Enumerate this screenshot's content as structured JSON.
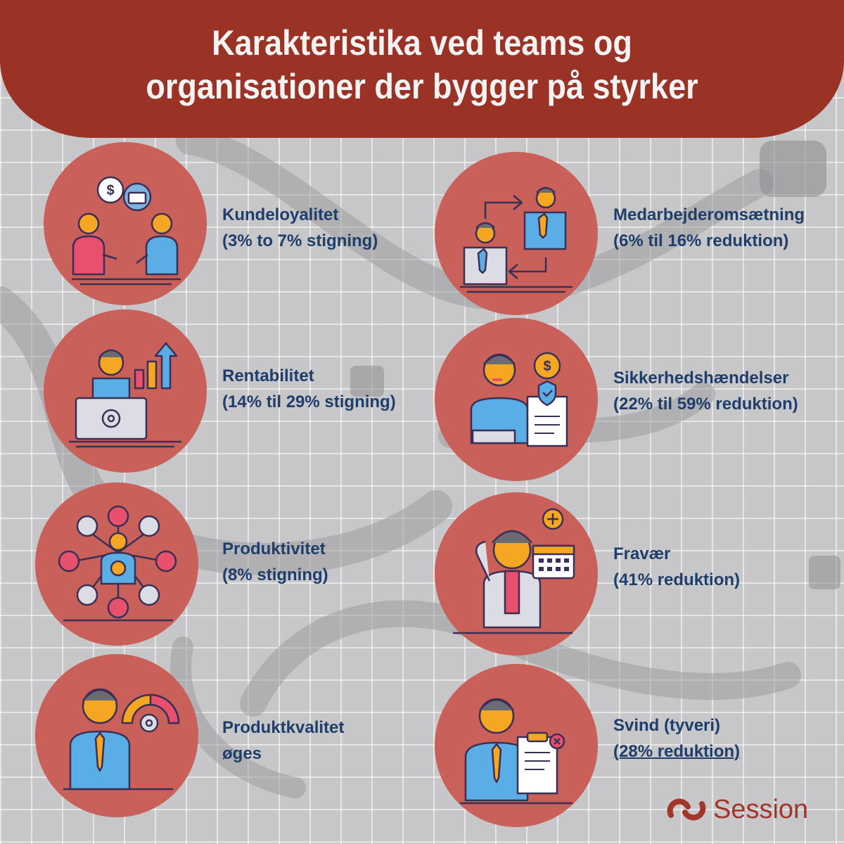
{
  "title": {
    "line1": "Karakteristika ved teams og",
    "line2": "organisationer der bygger på styrker"
  },
  "items": [
    {
      "icon": "handshake-meeting-icon",
      "line1": "Kundeloyalitet",
      "line2": "(3% to 7% stigning)"
    },
    {
      "icon": "employee-turnover-icon",
      "line1": "Medarbejderomsætning",
      "line2": "(6% til 16% reduktion)"
    },
    {
      "icon": "profit-laptop-icon",
      "line1": "Rentabilitet",
      "line2": "(14% til 29% stigning)"
    },
    {
      "icon": "injured-worker-icon",
      "line1": "Sikkerhedshændelser",
      "line2": "(22% til 59% reduktion)"
    },
    {
      "icon": "team-network-icon",
      "line1": "Produktivitet",
      "line2": "(8% stigning)"
    },
    {
      "icon": "sick-calendar-icon",
      "line1": "Fravær",
      "line2": "(41% reduktion)"
    },
    {
      "icon": "quality-gauge-icon",
      "line1": "Produktkvalitet",
      "line2": "øges"
    },
    {
      "icon": "theft-clipboard-icon",
      "line1": "Svind (tyveri)",
      "line2": "(28% reduktion)"
    }
  ],
  "logo": {
    "text": "Session",
    "icon": "session-logo-icon"
  },
  "colors": {
    "banner": "#9b3226",
    "circle": "#c9605a",
    "label": "#1f3e6b",
    "background": "#c7c7c9",
    "logo": "#a3352a"
  }
}
